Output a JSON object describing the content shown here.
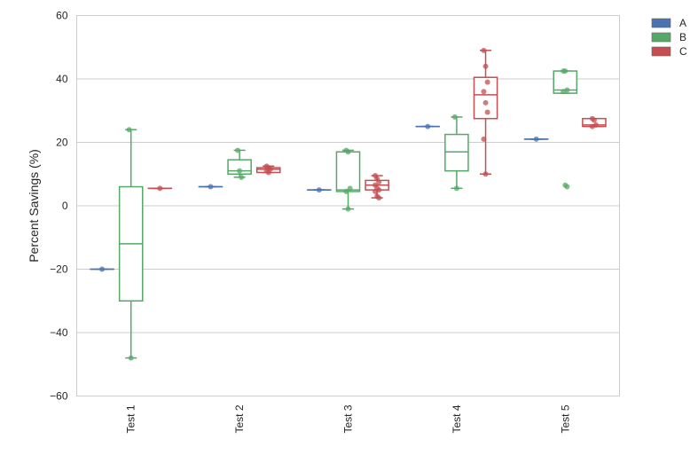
{
  "chart_data": {
    "type": "box",
    "xlabel": "",
    "ylabel": "Percent Savings (%)",
    "ylim": [
      -60,
      60
    ],
    "yticks": [
      -60,
      -40,
      -20,
      0,
      20,
      40,
      60
    ],
    "grid": true,
    "legend_position": "outside-top-right",
    "categories": [
      "Test 1",
      "Test 2",
      "Test 3",
      "Test 4",
      "Test 5"
    ],
    "series": [
      {
        "name": "A",
        "color": "#4c72b0",
        "boxes": [
          {
            "category": "Test 1",
            "whislo": -20,
            "q1": -20,
            "med": -20,
            "q3": -20,
            "whishi": -20,
            "points": [
              -20
            ]
          },
          {
            "category": "Test 2",
            "whislo": 6,
            "q1": 6,
            "med": 6,
            "q3": 6,
            "whishi": 6,
            "points": [
              6
            ]
          },
          {
            "category": "Test 3",
            "whislo": 5,
            "q1": 5,
            "med": 5,
            "q3": 5,
            "whishi": 5,
            "points": [
              5
            ]
          },
          {
            "category": "Test 4",
            "whislo": 25,
            "q1": 25,
            "med": 25,
            "q3": 25,
            "whishi": 25,
            "points": [
              25
            ]
          },
          {
            "category": "Test 5",
            "whislo": 21,
            "q1": 21,
            "med": 21,
            "q3": 21,
            "whishi": 21,
            "points": [
              21
            ]
          }
        ]
      },
      {
        "name": "B",
        "color": "#55a868",
        "boxes": [
          {
            "category": "Test 1",
            "whislo": -48,
            "q1": -30,
            "med": -12,
            "q3": 6,
            "whishi": 24,
            "points": [
              24,
              -48
            ]
          },
          {
            "category": "Test 2",
            "whislo": 9,
            "q1": 10,
            "med": 11,
            "q3": 14.5,
            "whishi": 17.5,
            "points": [
              17.5,
              11,
              9
            ]
          },
          {
            "category": "Test 3",
            "whislo": -1,
            "q1": 4.5,
            "med": 5,
            "q3": 17,
            "whishi": 17.5,
            "points": [
              17.5,
              17,
              5.5,
              4.5,
              -1
            ]
          },
          {
            "category": "Test 4",
            "whislo": 5.5,
            "q1": 11,
            "med": 17,
            "q3": 22.5,
            "whishi": 28,
            "points": [
              28,
              5.5
            ]
          },
          {
            "category": "Test 5",
            "whislo": 35.5,
            "q1": 35.5,
            "med": 36.5,
            "q3": 42.5,
            "whishi": 42.5,
            "points": [
              42.5,
              42.5,
              36.5,
              36,
              6.5,
              6
            ]
          }
        ]
      },
      {
        "name": "C",
        "color": "#c44e52",
        "boxes": [
          {
            "category": "Test 1",
            "whislo": 5.5,
            "q1": 5.5,
            "med": 5.5,
            "q3": 5.5,
            "whishi": 5.5,
            "points": [
              5.5
            ]
          },
          {
            "category": "Test 2",
            "whislo": 10.5,
            "q1": 10.5,
            "med": 11.5,
            "q3": 12,
            "whishi": 12.5,
            "points": [
              12.5,
              12,
              11.5,
              11,
              10.5
            ]
          },
          {
            "category": "Test 3",
            "whislo": 2.5,
            "q1": 5,
            "med": 6.5,
            "q3": 8,
            "whishi": 9.5,
            "points": [
              9.5,
              8.5,
              7.5,
              6.5,
              5.5,
              5,
              4.5,
              3,
              2.5
            ]
          },
          {
            "category": "Test 4",
            "whislo": 10,
            "q1": 27.5,
            "med": 35,
            "q3": 40.5,
            "whishi": 49,
            "points": [
              49,
              44,
              39,
              36,
              32.5,
              29.5,
              21,
              10
            ]
          },
          {
            "category": "Test 5",
            "whislo": 25,
            "q1": 25,
            "med": 25.5,
            "q3": 27.5,
            "whishi": 27.5,
            "points": [
              27.5,
              27,
              25.5,
              25
            ]
          }
        ]
      }
    ]
  }
}
